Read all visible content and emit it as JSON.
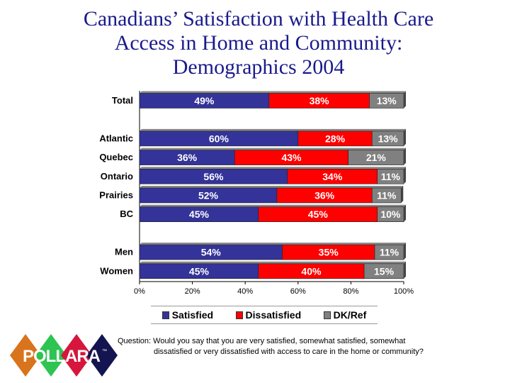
{
  "title_lines": [
    "Canadians’ Satisfaction with Health Care",
    "Access in Home and Community:",
    "Demographics 2004"
  ],
  "chart_data": {
    "type": "bar",
    "orientation": "horizontal",
    "stacked": true,
    "title": "Canadians’ Satisfaction with Health Care Access in Home and Community: Demographics 2004",
    "categories": [
      "Total",
      "Atlantic",
      "Quebec",
      "Ontario",
      "Prairies",
      "BC",
      "Men",
      "Women"
    ],
    "series": [
      {
        "name": "Satisfied",
        "color": "#333399",
        "values": [
          49,
          60,
          36,
          56,
          52,
          45,
          54,
          45
        ]
      },
      {
        "name": "Dissatisfied",
        "color": "#ff0000",
        "values": [
          38,
          28,
          43,
          34,
          36,
          45,
          35,
          40
        ]
      },
      {
        "name": "DK/Ref",
        "color": "#808080",
        "values": [
          13,
          13,
          21,
          11,
          11,
          10,
          11,
          15
        ]
      }
    ],
    "xlim": [
      0,
      100
    ],
    "xticks": [
      "0%",
      "20%",
      "40%",
      "60%",
      "80%",
      "100%"
    ],
    "legend": "bottom",
    "grid": false
  },
  "question": {
    "line1": "Question: Would you say that you are very satisfied, somewhat satisfied, somewhat",
    "line2": "dissatisfied or very dissatisfied with access to care in the home or community?"
  },
  "logo": {
    "text": "POLLARA",
    "tm": "™",
    "colors": [
      "#d9731c",
      "#2ec452",
      "#d6163c",
      "#141450"
    ]
  }
}
